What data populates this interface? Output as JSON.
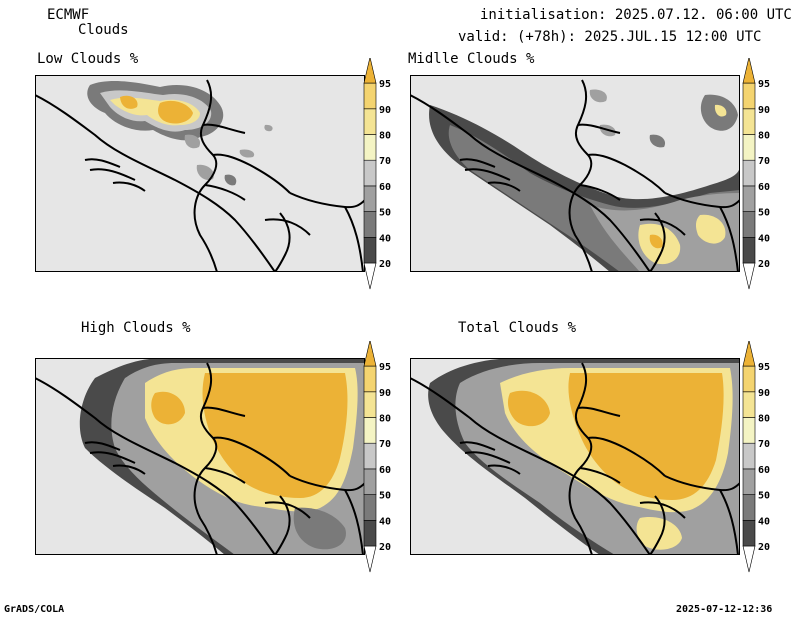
{
  "header": {
    "model": "ECMWF",
    "product": "Clouds",
    "init": "initialisation: 2025.07.12. 06:00 UTC",
    "valid": "valid: (+78h): 2025.JUL.15 12:00 UTC"
  },
  "panels": [
    {
      "id": "low",
      "title": "Low Clouds %"
    },
    {
      "id": "middle",
      "title": "Midlle Clouds %"
    },
    {
      "id": "high",
      "title": "High Clouds %"
    },
    {
      "id": "total",
      "title": "Total Clouds %"
    }
  ],
  "legend": {
    "levels": [
      "20",
      "40",
      "50",
      "60",
      "70",
      "80",
      "90",
      "95"
    ],
    "colors": [
      "#ffffff",
      "#4a4a4a",
      "#7a7a7a",
      "#a0a0a0",
      "#c8c8c8",
      "#f4f4c4",
      "#f4e494",
      "#f4d470",
      "#ecb236"
    ]
  },
  "colors": {
    "background": "#e6e6e6",
    "cloud_full": "#ecb236",
    "border": "#000000"
  },
  "footer": {
    "left": "GrADS/COLA",
    "right": "2025-07-12-12:36"
  }
}
